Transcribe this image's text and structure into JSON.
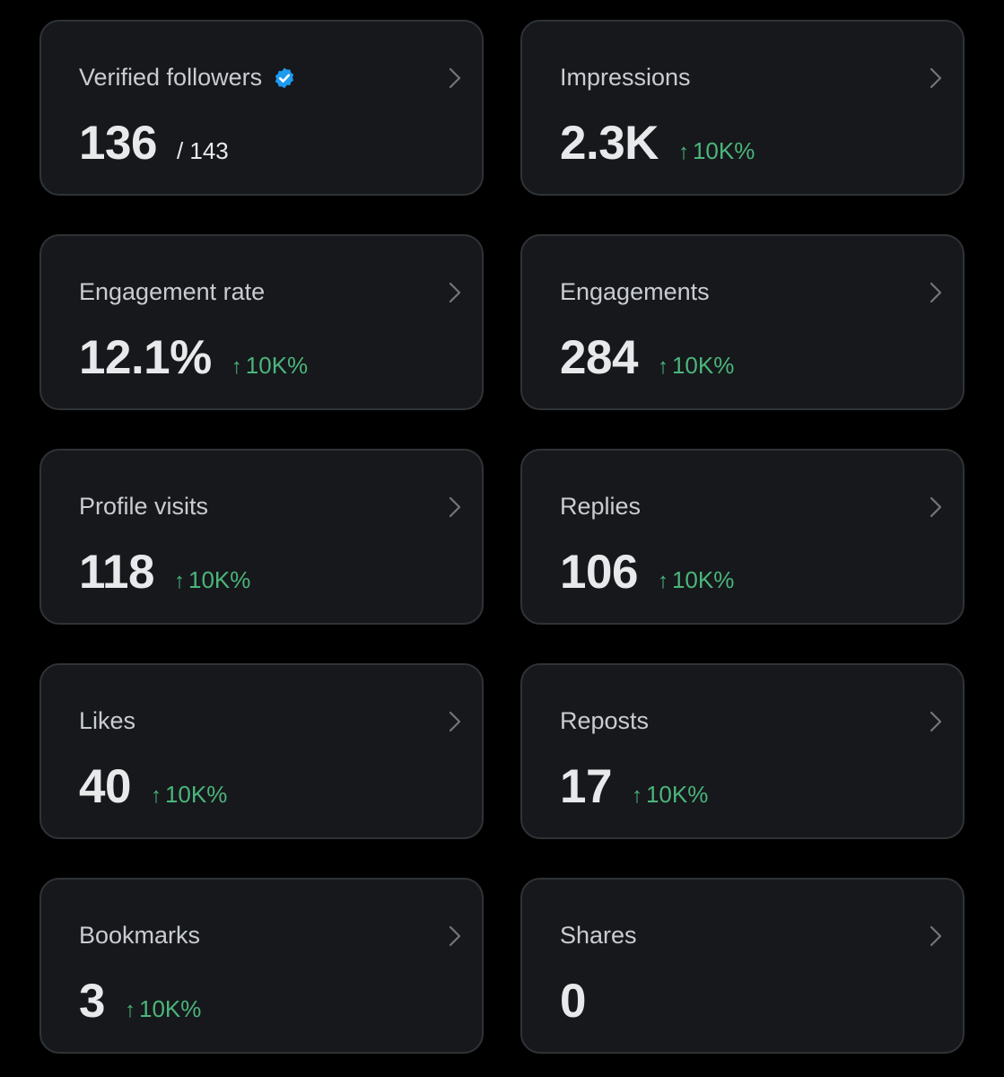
{
  "colors": {
    "background": "#000000",
    "card": "#16181c",
    "card_border": "#2f3336",
    "title_text": "#c9ccd1",
    "value_text": "#e7e9ea",
    "positive": "#4bb57a",
    "verified_badge": "#1d9bf0"
  },
  "icons": {
    "verified": "verified-badge-icon",
    "chevron": "chevron-right-icon",
    "trend": "arrow-up-icon"
  },
  "cards": [
    {
      "title": "Verified followers",
      "value": "136",
      "total": "/ 143"
    },
    {
      "title": "Impressions",
      "value": "2.3K",
      "delta": "10K%",
      "arrow": "↑"
    },
    {
      "title": "Engagement rate",
      "value": "12.1%",
      "delta": "10K%",
      "arrow": "↑"
    },
    {
      "title": "Engagements",
      "value": "284",
      "delta": "10K%",
      "arrow": "↑"
    },
    {
      "title": "Profile visits",
      "value": "118",
      "delta": "10K%",
      "arrow": "↑"
    },
    {
      "title": "Replies",
      "value": "106",
      "delta": "10K%",
      "arrow": "↑"
    },
    {
      "title": "Likes",
      "value": "40",
      "delta": "10K%",
      "arrow": "↑"
    },
    {
      "title": "Reposts",
      "value": "17",
      "delta": "10K%",
      "arrow": "↑"
    },
    {
      "title": "Bookmarks",
      "value": "3",
      "delta": "10K%",
      "arrow": "↑"
    },
    {
      "title": "Shares",
      "value": "0"
    }
  ]
}
